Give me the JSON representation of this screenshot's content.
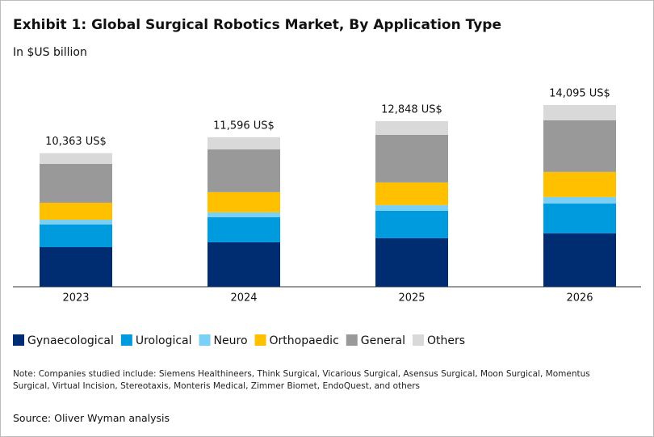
{
  "chart_data": {
    "type": "stacked_bar",
    "title": "Exhibit 1: Global Surgical Robotics Market, By Application Type",
    "subtitle": "In $US billion",
    "categories": [
      "2023",
      "2024",
      "2025",
      "2026"
    ],
    "series": [
      {
        "name": "Gynaecological",
        "color": "#002d72",
        "values": [
          3070,
          3450,
          3762,
          4138
        ]
      },
      {
        "name": "Urological",
        "color": "#009ade",
        "values": [
          1755,
          1944,
          2132,
          2320
        ]
      },
      {
        "name": "Neuro",
        "color": "#7ad0f5",
        "values": [
          376,
          376,
          439,
          502
        ]
      },
      {
        "name": "Orthopaedic",
        "color": "#ffc000",
        "values": [
          1317,
          1568,
          1756,
          1944
        ]
      },
      {
        "name": "General",
        "color": "#999999",
        "values": [
          3010,
          3323,
          3699,
          4013
        ]
      },
      {
        "name": "Others",
        "color": "#d9d9d9",
        "values": [
          835,
          935,
          1060,
          1178
        ]
      }
    ],
    "totals": [
      10363,
      11596,
      12848,
      14095
    ],
    "total_labels": [
      "10,363 US$",
      "11,596 US$",
      "12,848 US$",
      "14,095 US$"
    ],
    "note": "Note: Companies studied include: Siemens Healthineers, Think Surgical, Vicarious Surgical, Asensus Surgical, Moon Surgical, Momentus Surgical, Virtual Incision, Stereotaxis, Monteris Medical, Zimmer Biomet, EndoQuest, and others",
    "source": "Source: Oliver Wyman analysis"
  }
}
